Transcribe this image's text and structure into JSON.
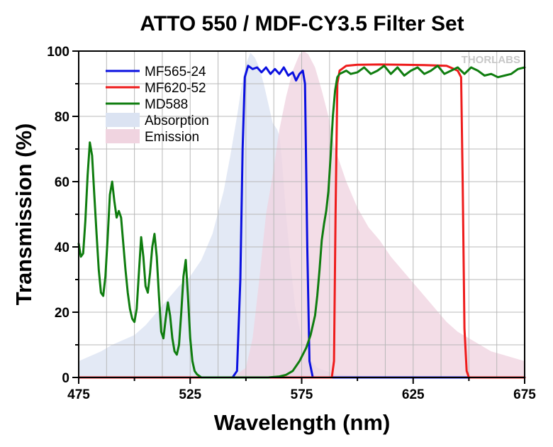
{
  "chart_data": {
    "type": "line",
    "title": "ATTO 550 / MDF-CY3.5 Filter Set",
    "xlabel": "Wavelength (nm)",
    "ylabel": "Transmission (%)",
    "xlim": [
      475,
      675
    ],
    "ylim": [
      0,
      100
    ],
    "x_ticks": [
      475,
      525,
      575,
      625,
      675
    ],
    "x_tick_labels": [
      "475",
      "525",
      "575",
      "625",
      "675"
    ],
    "y_ticks": [
      0,
      20,
      40,
      60,
      80,
      100
    ],
    "y_tick_labels": [
      "0",
      "20",
      "40",
      "60",
      "80",
      "100"
    ],
    "grid": true,
    "legend_position": "top-left",
    "watermark": "THORLABS",
    "series": [
      {
        "name": "MF565-24",
        "kind": "line",
        "color": "#0a10e0",
        "points": [
          [
            475,
            0
          ],
          [
            544,
            0
          ],
          [
            546,
            2
          ],
          [
            547.5,
            30
          ],
          [
            548.5,
            70
          ],
          [
            549.5,
            92
          ],
          [
            551,
            95.5
          ],
          [
            553,
            94.5
          ],
          [
            555,
            95
          ],
          [
            557,
            93.5
          ],
          [
            559,
            95
          ],
          [
            561,
            93
          ],
          [
            563,
            94.5
          ],
          [
            565,
            93
          ],
          [
            567,
            95
          ],
          [
            569,
            92.5
          ],
          [
            571,
            93.5
          ],
          [
            572.5,
            91
          ],
          [
            574,
            93
          ],
          [
            575.5,
            94
          ],
          [
            576.5,
            90
          ],
          [
            577.5,
            40
          ],
          [
            578.5,
            5
          ],
          [
            580,
            0
          ],
          [
            675,
            0
          ]
        ]
      },
      {
        "name": "MF620-52",
        "kind": "line",
        "color": "#ee1c1c",
        "points": [
          [
            475,
            0
          ],
          [
            588.5,
            0
          ],
          [
            589.5,
            5
          ],
          [
            590.2,
            50
          ],
          [
            591,
            90
          ],
          [
            592,
            94
          ],
          [
            595,
            95.5
          ],
          [
            600,
            95.8
          ],
          [
            610,
            95.9
          ],
          [
            620,
            95.8
          ],
          [
            630,
            95.7
          ],
          [
            640,
            95.5
          ],
          [
            645,
            94
          ],
          [
            646.5,
            92
          ],
          [
            647.2,
            60
          ],
          [
            648,
            15
          ],
          [
            649,
            2
          ],
          [
            650,
            0
          ],
          [
            675,
            0
          ]
        ]
      },
      {
        "name": "MD588",
        "kind": "line",
        "color": "#0f7d0f",
        "points": [
          [
            475,
            41
          ],
          [
            476,
            37
          ],
          [
            477,
            38
          ],
          [
            478,
            48
          ],
          [
            479,
            62
          ],
          [
            480,
            72
          ],
          [
            481,
            68
          ],
          [
            482,
            56
          ],
          [
            483,
            44
          ],
          [
            484,
            33
          ],
          [
            485,
            26
          ],
          [
            486,
            25
          ],
          [
            487,
            31
          ],
          [
            488,
            43
          ],
          [
            489,
            56
          ],
          [
            490,
            60
          ],
          [
            491,
            54
          ],
          [
            492,
            49
          ],
          [
            493,
            51
          ],
          [
            494,
            49
          ],
          [
            495,
            41
          ],
          [
            496,
            33
          ],
          [
            497,
            26
          ],
          [
            498,
            21
          ],
          [
            499,
            18
          ],
          [
            500,
            17
          ],
          [
            501,
            21
          ],
          [
            502,
            32
          ],
          [
            503,
            43
          ],
          [
            504,
            37
          ],
          [
            505,
            28
          ],
          [
            506,
            26
          ],
          [
            507,
            32
          ],
          [
            508,
            40
          ],
          [
            509,
            44
          ],
          [
            510,
            37
          ],
          [
            511,
            25
          ],
          [
            512,
            14
          ],
          [
            513,
            12
          ],
          [
            514,
            18
          ],
          [
            515,
            23
          ],
          [
            516,
            19
          ],
          [
            517,
            12
          ],
          [
            518,
            8
          ],
          [
            519,
            7
          ],
          [
            520,
            10
          ],
          [
            521,
            20
          ],
          [
            522,
            31
          ],
          [
            523,
            36
          ],
          [
            524,
            25
          ],
          [
            525,
            12
          ],
          [
            526,
            5
          ],
          [
            527,
            2
          ],
          [
            528,
            1
          ],
          [
            530,
            0
          ],
          [
            560,
            0
          ],
          [
            565,
            0.3
          ],
          [
            568,
            0.8
          ],
          [
            571,
            2
          ],
          [
            574,
            5
          ],
          [
            577,
            9
          ],
          [
            579,
            13
          ],
          [
            581,
            19
          ],
          [
            582,
            25
          ],
          [
            583,
            33
          ],
          [
            584,
            42
          ],
          [
            585,
            47
          ],
          [
            586,
            51
          ],
          [
            587,
            57
          ],
          [
            588,
            68
          ],
          [
            589,
            80
          ],
          [
            590,
            88
          ],
          [
            591,
            92
          ],
          [
            592,
            93
          ],
          [
            595,
            94
          ],
          [
            597,
            93
          ],
          [
            600,
            93.5
          ],
          [
            603,
            95
          ],
          [
            606,
            93
          ],
          [
            609,
            94
          ],
          [
            612,
            95.5
          ],
          [
            615,
            93
          ],
          [
            618,
            95
          ],
          [
            621,
            92.5
          ],
          [
            624,
            94
          ],
          [
            627,
            95
          ],
          [
            630,
            93
          ],
          [
            633,
            94
          ],
          [
            636,
            95.5
          ],
          [
            639,
            93
          ],
          [
            642,
            94
          ],
          [
            645,
            95
          ],
          [
            648,
            93
          ],
          [
            651,
            95
          ],
          [
            654,
            94
          ],
          [
            657,
            92.5
          ],
          [
            660,
            93
          ],
          [
            663,
            92
          ],
          [
            666,
            92.5
          ],
          [
            669,
            93
          ],
          [
            672,
            94.5
          ],
          [
            675,
            95
          ]
        ]
      },
      {
        "name": "Absorption",
        "kind": "area",
        "color": "#dbe3f2",
        "points": [
          [
            475,
            5
          ],
          [
            480,
            6.5
          ],
          [
            485,
            8
          ],
          [
            490,
            10
          ],
          [
            495,
            11.5
          ],
          [
            500,
            13
          ],
          [
            505,
            16
          ],
          [
            510,
            20
          ],
          [
            515,
            24
          ],
          [
            520,
            28
          ],
          [
            525,
            31
          ],
          [
            530,
            36
          ],
          [
            535,
            44
          ],
          [
            540,
            57
          ],
          [
            543,
            68
          ],
          [
            546,
            80
          ],
          [
            548,
            89
          ],
          [
            550,
            96
          ],
          [
            552,
            99.5
          ],
          [
            554,
            98
          ],
          [
            556,
            95
          ],
          [
            558,
            90
          ],
          [
            560,
            84
          ],
          [
            562,
            78
          ],
          [
            564,
            76
          ],
          [
            565,
            74
          ],
          [
            566,
            68
          ],
          [
            567,
            59
          ],
          [
            568,
            50
          ],
          [
            570,
            35
          ],
          [
            572,
            22
          ],
          [
            575,
            12
          ],
          [
            578,
            6
          ],
          [
            582,
            3
          ],
          [
            590,
            1
          ],
          [
            600,
            0.5
          ],
          [
            610,
            0
          ],
          [
            675,
            0
          ]
        ]
      },
      {
        "name": "Emission",
        "kind": "area",
        "color": "#f0d4e0",
        "points": [
          [
            475,
            0
          ],
          [
            535,
            0
          ],
          [
            545,
            0.5
          ],
          [
            550,
            3
          ],
          [
            553,
            12
          ],
          [
            556,
            30
          ],
          [
            559,
            50
          ],
          [
            562,
            62
          ],
          [
            565,
            76
          ],
          [
            568,
            86
          ],
          [
            571,
            94
          ],
          [
            574,
            99
          ],
          [
            576,
            100
          ],
          [
            578,
            99
          ],
          [
            581,
            95
          ],
          [
            584,
            88
          ],
          [
            587,
            80
          ],
          [
            590,
            70
          ],
          [
            595,
            60
          ],
          [
            600,
            52
          ],
          [
            605,
            46
          ],
          [
            610,
            42
          ],
          [
            615,
            37
          ],
          [
            620,
            33
          ],
          [
            625,
            29
          ],
          [
            630,
            25
          ],
          [
            635,
            21
          ],
          [
            640,
            17
          ],
          [
            645,
            14
          ],
          [
            650,
            12
          ],
          [
            655,
            10
          ],
          [
            660,
            8
          ],
          [
            665,
            7
          ],
          [
            670,
            6
          ],
          [
            675,
            5
          ]
        ]
      }
    ]
  }
}
